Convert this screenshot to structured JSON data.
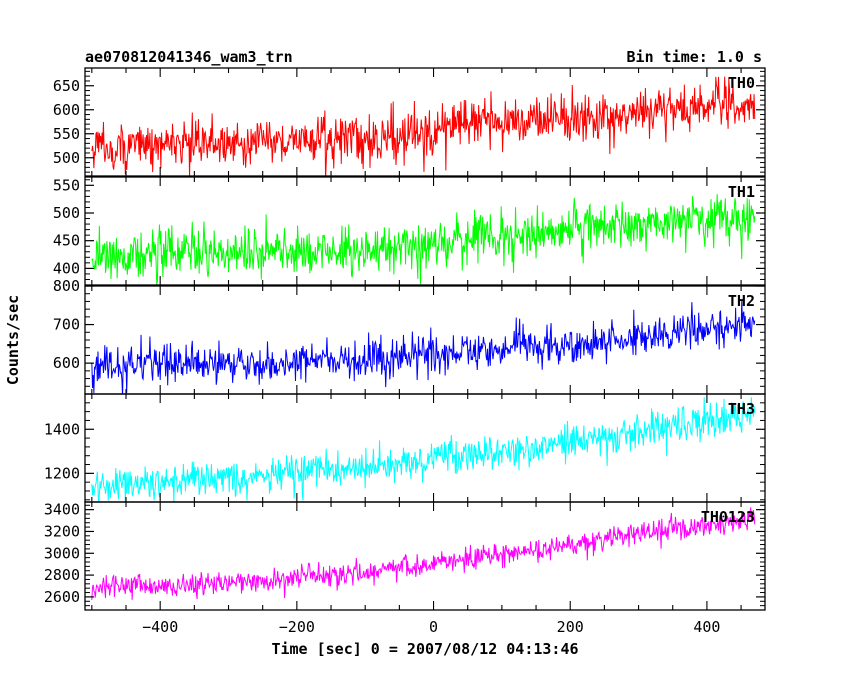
{
  "header": {
    "title": "ae070812041346_wam3_trn",
    "bin_time": "Bin time: 1.0 s"
  },
  "chart_data": {
    "type": "line",
    "xlabel": "Time [sec] 0 = 2007/08/12 04:13:46",
    "ylabel": "Counts/sec",
    "xlim": [
      -510,
      485
    ],
    "x_ticks": [
      -400,
      -200,
      0,
      200,
      400
    ],
    "x_range": [
      -500,
      470
    ],
    "step": 1.0,
    "panels": [
      {
        "name": "TH0",
        "color": "#ff0000",
        "ylim": [
          462,
          687
        ],
        "y_ticks": [
          500,
          550,
          600,
          650
        ],
        "trend_x": [
          -500,
          -300,
          -100,
          0,
          5,
          200,
          400,
          470
        ],
        "trend_y": [
          520,
          533,
          540,
          548,
          565,
          585,
          605,
          612
        ],
        "noise": 25
      },
      {
        "name": "TH1",
        "color": "#00ff00",
        "ylim": [
          370,
          565
        ],
        "y_ticks": [
          400,
          450,
          500,
          550
        ],
        "trend_x": [
          -500,
          -300,
          -100,
          0,
          200,
          400,
          470
        ],
        "trend_y": [
          425,
          428,
          432,
          445,
          470,
          490,
          495
        ],
        "noise": 22
      },
      {
        "name": "TH2",
        "color": "#0000ff",
        "ylim": [
          520,
          800
        ],
        "y_ticks": [
          600,
          700,
          800
        ],
        "trend_x": [
          -500,
          -300,
          -100,
          0,
          200,
          400,
          470
        ],
        "trend_y": [
          595,
          598,
          608,
          625,
          650,
          690,
          705
        ],
        "noise": 25
      },
      {
        "name": "TH3",
        "color": "#00ffff",
        "ylim": [
          1070,
          1560
        ],
        "y_ticks": [
          1200,
          1400
        ],
        "trend_x": [
          -500,
          -300,
          -100,
          0,
          200,
          400,
          470
        ],
        "trend_y": [
          1150,
          1175,
          1225,
          1265,
          1340,
          1440,
          1470
        ],
        "noise": 40
      },
      {
        "name": "TH0123",
        "color": "#ff00ff",
        "ylim": [
          2480,
          3470
        ],
        "y_ticks": [
          2600,
          2800,
          3000,
          3200,
          3400
        ],
        "trend_x": [
          -500,
          -300,
          -100,
          0,
          200,
          400,
          470
        ],
        "trend_y": [
          2690,
          2720,
          2830,
          2920,
          3070,
          3250,
          3330
        ],
        "noise": 55
      }
    ]
  }
}
